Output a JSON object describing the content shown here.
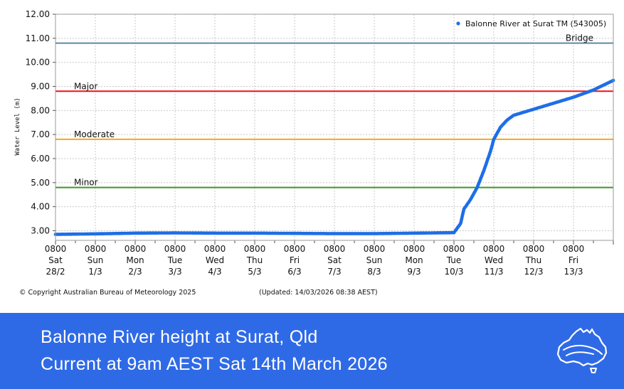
{
  "banner": {
    "title": "Balonne River height at Surat, Qld",
    "subtitle": "Current at 9am AEST Sat 14th March 2026",
    "background": "#2f6ae6",
    "icon": "australia-map-icon"
  },
  "footer": {
    "copyright": "© Copyright Australian Bureau of Meteorology 2025",
    "updated": "(Updated: 14/03/2026 08:38 AEST)"
  },
  "chart_data": {
    "type": "scatter",
    "title": "",
    "xlabel": "",
    "ylabel": "Water Level (m)",
    "ylim": [
      2.6,
      12.0
    ],
    "y_ticks": [
      "12.00",
      "11.00",
      "10.00",
      "9.00",
      "8.00",
      "7.00",
      "6.00",
      "5.00",
      "4.00",
      "3.00"
    ],
    "x_ticks": [
      {
        "time": "0800",
        "day": "Sat",
        "date": "28/2"
      },
      {
        "time": "0800",
        "day": "Sun",
        "date": "1/3"
      },
      {
        "time": "0800",
        "day": "Mon",
        "date": "2/3"
      },
      {
        "time": "0800",
        "day": "Tue",
        "date": "3/3"
      },
      {
        "time": "0800",
        "day": "Wed",
        "date": "4/3"
      },
      {
        "time": "0800",
        "day": "Thu",
        "date": "5/3"
      },
      {
        "time": "0800",
        "day": "Fri",
        "date": "6/3"
      },
      {
        "time": "0800",
        "day": "Sat",
        "date": "7/3"
      },
      {
        "time": "0800",
        "day": "Sun",
        "date": "8/3"
      },
      {
        "time": "0800",
        "day": "Mon",
        "date": "9/3"
      },
      {
        "time": "0800",
        "day": "Tue",
        "date": "10/3"
      },
      {
        "time": "0800",
        "day": "Wed",
        "date": "11/3"
      },
      {
        "time": "0800",
        "day": "Thu",
        "date": "12/3"
      },
      {
        "time": "0800",
        "day": "Fri",
        "date": "13/3"
      }
    ],
    "grid": true,
    "legend_position": "top-right",
    "thresholds": [
      {
        "label": "Bridge",
        "value": 10.8,
        "color": "#5b8aa6"
      },
      {
        "label": "Major",
        "value": 8.8,
        "color": "#e8141c"
      },
      {
        "label": "Moderate",
        "value": 6.8,
        "color": "#f5a623"
      },
      {
        "label": "Minor",
        "value": 4.8,
        "color": "#3a9a22"
      }
    ],
    "series": [
      {
        "name": "Balonne River at Surat TM (543005)",
        "color": "#1e6ee6",
        "points": [
          {
            "x": "2026-02-28 08:00",
            "y": 2.85
          },
          {
            "x": "2026-03-01 08:00",
            "y": 2.87
          },
          {
            "x": "2026-03-02 08:00",
            "y": 2.9
          },
          {
            "x": "2026-03-03 08:00",
            "y": 2.91
          },
          {
            "x": "2026-03-04 08:00",
            "y": 2.9
          },
          {
            "x": "2026-03-05 08:00",
            "y": 2.9
          },
          {
            "x": "2026-03-06 08:00",
            "y": 2.89
          },
          {
            "x": "2026-03-07 08:00",
            "y": 2.88
          },
          {
            "x": "2026-03-08 08:00",
            "y": 2.88
          },
          {
            "x": "2026-03-09 08:00",
            "y": 2.9
          },
          {
            "x": "2026-03-10 08:00",
            "y": 2.92
          },
          {
            "x": "2026-03-10 12:00",
            "y": 3.3
          },
          {
            "x": "2026-03-10 14:00",
            "y": 3.9
          },
          {
            "x": "2026-03-10 18:00",
            "y": 4.3
          },
          {
            "x": "2026-03-10 22:00",
            "y": 4.8
          },
          {
            "x": "2026-03-11 02:00",
            "y": 5.5
          },
          {
            "x": "2026-03-11 06:00",
            "y": 6.3
          },
          {
            "x": "2026-03-11 08:00",
            "y": 6.8
          },
          {
            "x": "2026-03-11 12:00",
            "y": 7.3
          },
          {
            "x": "2026-03-11 16:00",
            "y": 7.6
          },
          {
            "x": "2026-03-11 20:00",
            "y": 7.8
          },
          {
            "x": "2026-03-12 08:00",
            "y": 8.05
          },
          {
            "x": "2026-03-13 08:00",
            "y": 8.55
          },
          {
            "x": "2026-03-13 20:00",
            "y": 8.85
          },
          {
            "x": "2026-03-14 08:00",
            "y": 9.25
          }
        ]
      }
    ]
  }
}
